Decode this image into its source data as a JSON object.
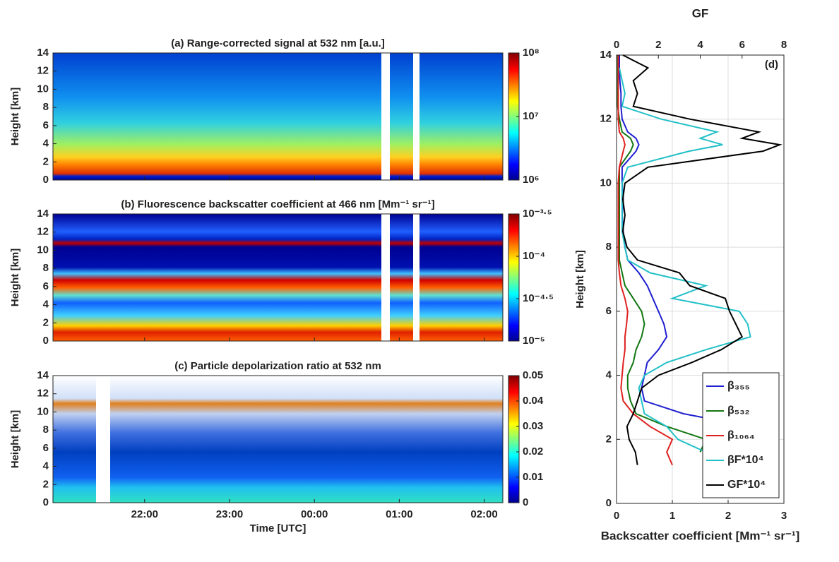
{
  "chart_data": [
    {
      "type": "heatmap",
      "title": "(a) Range-corrected signal at 532 nm [a.u.]",
      "ylabel": "Height [km]",
      "xlim": [
        20.92,
        26.22
      ],
      "ylim": [
        0,
        14
      ],
      "yticks": [
        0,
        2,
        4,
        6,
        8,
        10,
        12,
        14
      ],
      "zscale": "log",
      "zlim": [
        1000000,
        100000000
      ],
      "zticks": [
        {
          "value": 1000000,
          "label": "10⁶"
        },
        {
          "value": 10000000,
          "label": "10⁷"
        },
        {
          "value": 100000000,
          "label": "10⁸"
        }
      ]
    },
    {
      "type": "heatmap",
      "title": "(b) Fluorescence backscatter coefficient at 466 nm [Mm⁻¹ sr⁻¹]",
      "ylabel": "Height [km]",
      "xlim": [
        20.92,
        26.22
      ],
      "ylim": [
        0,
        14
      ],
      "yticks": [
        0,
        2,
        4,
        6,
        8,
        10,
        12,
        14
      ],
      "zscale": "log",
      "zlim": [
        1e-05,
        0.000316228
      ],
      "zticks": [
        {
          "value": 1e-05,
          "label": "10⁻⁵"
        },
        {
          "value": 3.16228e-05,
          "label": "10⁻⁴·⁵"
        },
        {
          "value": 0.0001,
          "label": "10⁻⁴"
        },
        {
          "value": 0.000316228,
          "label": "10⁻³·⁵"
        }
      ]
    },
    {
      "type": "heatmap",
      "title": "(c) Particle depolarization ratio at 532 nm",
      "ylabel": "Height [km]",
      "xlabel": "Time [UTC]",
      "xlim": [
        20.92,
        26.22
      ],
      "ylim": [
        0,
        14
      ],
      "yticks": [
        0,
        2,
        4,
        6,
        8,
        10,
        12,
        14
      ],
      "xticks": [
        {
          "value": 22,
          "label": "22:00"
        },
        {
          "value": 23,
          "label": "23:00"
        },
        {
          "value": 24,
          "label": "00:00"
        },
        {
          "value": 25,
          "label": "01:00"
        },
        {
          "value": 26,
          "label": "02:00"
        }
      ],
      "zscale": "linear",
      "zlim": [
        0,
        0.05
      ],
      "zticks": [
        0,
        0.01,
        0.02,
        0.03,
        0.04,
        0.05
      ]
    },
    {
      "type": "profile",
      "annotation": "(d)",
      "xlabel": "Backscatter coefficient [Mm⁻¹ sr⁻¹]",
      "x2label": "GF",
      "ylabel": "Height [km]",
      "xlim": [
        0,
        3
      ],
      "xticks": [
        0,
        1,
        2,
        3
      ],
      "x2lim": [
        0,
        8
      ],
      "x2ticks": [
        0,
        2,
        4,
        6,
        8
      ],
      "ylim": [
        0,
        14
      ],
      "yticks": [
        0,
        2,
        4,
        6,
        8,
        10,
        12,
        14
      ],
      "grid": true,
      "heights": [
        1.2,
        1.6,
        2.0,
        2.4,
        2.8,
        3.2,
        3.6,
        4.0,
        4.4,
        4.8,
        5.2,
        5.6,
        6.0,
        6.4,
        6.8,
        7.2,
        7.6,
        8.0,
        8.5,
        9.0,
        9.5,
        10.0,
        10.5,
        11.0,
        11.2,
        11.4,
        11.6,
        12.0,
        12.4,
        12.8,
        13.2,
        13.6,
        14.0
      ],
      "series": [
        {
          "name": "β₃₅₅",
          "color": "#1f1fd0",
          "values": [
            null,
            null,
            null,
            2.4,
            1.2,
            0.5,
            0.45,
            0.5,
            0.55,
            0.75,
            0.9,
            0.85,
            0.75,
            0.65,
            0.55,
            0.4,
            0.2,
            0.15,
            0.12,
            0.1,
            0.12,
            0.1,
            0.1,
            0.35,
            0.4,
            0.35,
            0.2,
            0.1,
            0.08,
            0.08,
            0.06,
            0.05,
            0.05
          ]
        },
        {
          "name": "β₅₃₂",
          "color": "#117711",
          "values": [
            null,
            1.5,
            1.6,
            0.9,
            0.35,
            0.25,
            0.2,
            0.2,
            0.3,
            0.35,
            0.45,
            0.5,
            0.45,
            0.3,
            0.15,
            0.1,
            0.05,
            0.05,
            0.05,
            0.05,
            0.05,
            0.05,
            0.05,
            0.25,
            0.3,
            0.25,
            0.1,
            0.05,
            0.02,
            0.02,
            0.02,
            0.02,
            0.02
          ]
        },
        {
          "name": "β₁₀₆₄",
          "color": "#e02020",
          "values": [
            1.0,
            0.9,
            1.0,
            0.6,
            0.3,
            0.12,
            0.08,
            0.1,
            0.12,
            0.15,
            0.15,
            0.18,
            0.2,
            0.15,
            0.08,
            0.05,
            0.03,
            0.03,
            0.03,
            0.03,
            0.03,
            0.03,
            0.05,
            0.12,
            0.15,
            0.12,
            0.05,
            0.03,
            0.03,
            0.03,
            0.03,
            0.03,
            0.03
          ]
        },
        {
          "name": "βF*10⁴",
          "color": "#22c0c8",
          "values": [
            null,
            1.6,
            1.1,
            0.9,
            0.5,
            0.45,
            0.4,
            0.5,
            0.9,
            1.6,
            2.4,
            2.35,
            2.2,
            1.0,
            1.6,
            0.6,
            0.2,
            0.15,
            0.1,
            0.1,
            0.1,
            0.1,
            0.2,
            1.3,
            1.9,
            1.5,
            1.8,
            0.8,
            0.1,
            0.15,
            0.1,
            0.05,
            null
          ]
        },
        {
          "name": "GF*10⁴",
          "color": "#000000",
          "axis": "x2",
          "values": [
            1.0,
            0.9,
            0.6,
            0.5,
            0.8,
            1.0,
            1.2,
            2.0,
            3.6,
            5.0,
            6.0,
            5.7,
            5.4,
            5.2,
            3.5,
            3.0,
            1.0,
            0.5,
            0.3,
            0.4,
            0.3,
            0.4,
            1.5,
            7.0,
            7.8,
            6.0,
            6.8,
            3.5,
            0.8,
            1.0,
            0.8,
            1.5,
            0.3
          ]
        }
      ]
    }
  ]
}
